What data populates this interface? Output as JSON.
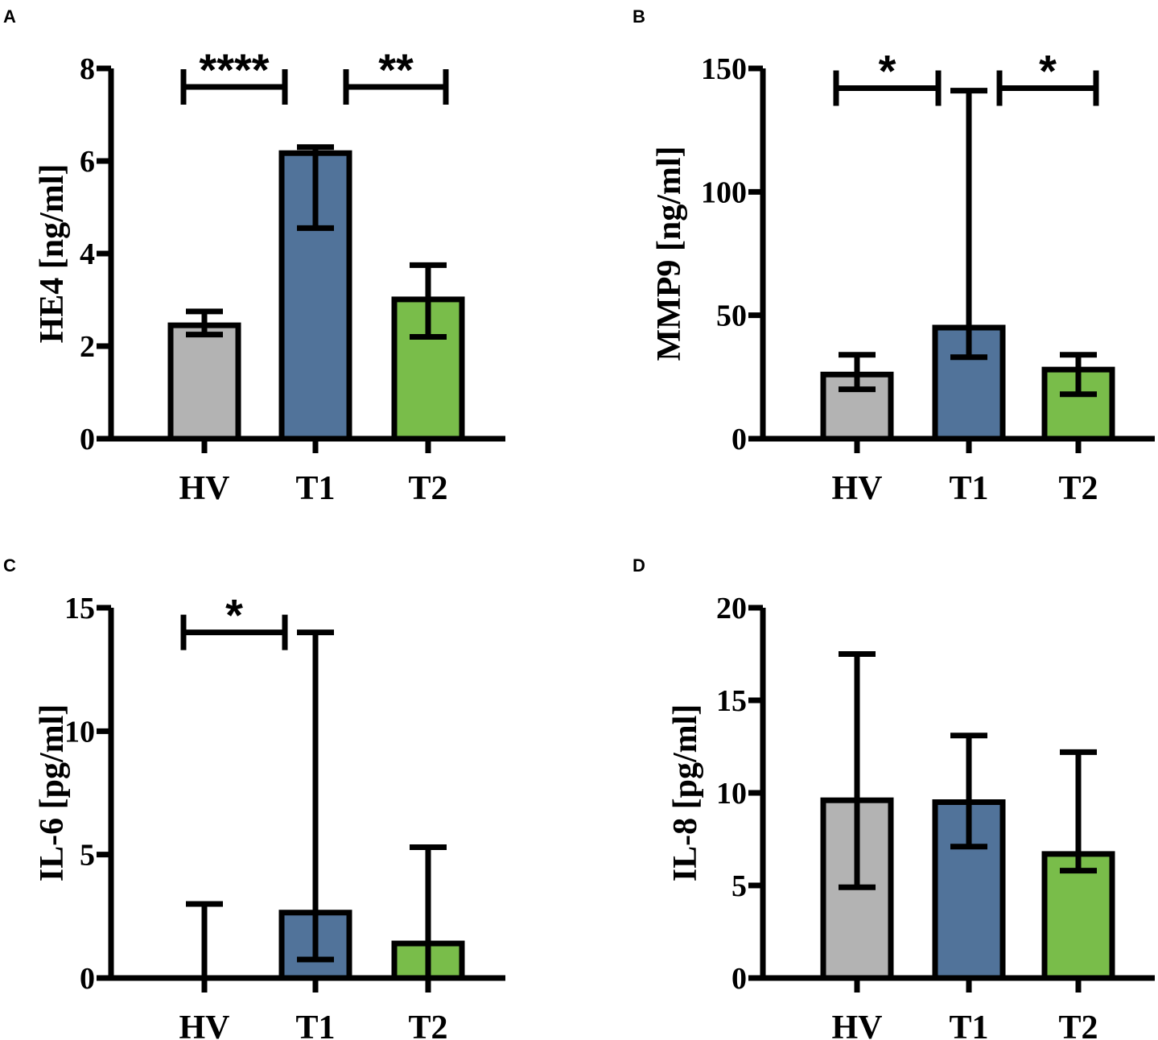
{
  "colors": {
    "HV": "#b3b3b3",
    "T1": "#51739a",
    "T2": "#79bd4a",
    "stroke": "#000000"
  },
  "chart_data": [
    {
      "panel": "A",
      "type": "bar",
      "ylabel": "HE4 [ng/ml]",
      "ylim": [
        0,
        8
      ],
      "yticks": [
        0,
        2,
        4,
        6,
        8
      ],
      "categories": [
        "HV",
        "T1",
        "T2"
      ],
      "values": [
        2.45,
        6.17,
        3.01
      ],
      "error_low": [
        2.25,
        4.55,
        2.2
      ],
      "error_high": [
        2.75,
        6.3,
        3.75
      ],
      "significance": [
        {
          "from": 0,
          "to": 1,
          "label": "****",
          "y": 7.6
        },
        {
          "from": 1,
          "to": 2,
          "label": "**",
          "y": 7.6
        }
      ]
    },
    {
      "panel": "B",
      "type": "bar",
      "ylabel": "MMP9 [ng/ml]",
      "ylim": [
        0,
        150
      ],
      "yticks": [
        0,
        50,
        100,
        150
      ],
      "categories": [
        "HV",
        "T1",
        "T2"
      ],
      "values": [
        26,
        45,
        28
      ],
      "error_low": [
        20,
        33,
        18
      ],
      "error_high": [
        34,
        141,
        34
      ],
      "significance": [
        {
          "from": 0,
          "to": 1,
          "label": "*",
          "y": 142
        },
        {
          "from": 1,
          "to": 2,
          "label": "*",
          "y": 142
        }
      ]
    },
    {
      "panel": "C",
      "type": "bar",
      "ylabel": "IL-6 [pg/ml]",
      "ylim": [
        0,
        15
      ],
      "yticks": [
        0,
        5,
        10,
        15
      ],
      "categories": [
        "HV",
        "T1",
        "T2"
      ],
      "values": [
        0,
        2.65,
        1.4
      ],
      "error_low": [
        0,
        0.75,
        0
      ],
      "error_high": [
        3.0,
        14.0,
        5.3
      ],
      "significance": [
        {
          "from": 0,
          "to": 1,
          "label": "*",
          "y": 14.0
        }
      ]
    },
    {
      "panel": "D",
      "type": "bar",
      "ylabel": "IL-8 [pg/ml]",
      "ylim": [
        0,
        20
      ],
      "yticks": [
        0,
        5,
        10,
        15,
        20
      ],
      "categories": [
        "HV",
        "T1",
        "T2"
      ],
      "values": [
        9.6,
        9.5,
        6.7
      ],
      "error_low": [
        4.9,
        7.1,
        5.8
      ],
      "error_high": [
        17.5,
        13.1,
        12.2
      ],
      "significance": []
    }
  ]
}
